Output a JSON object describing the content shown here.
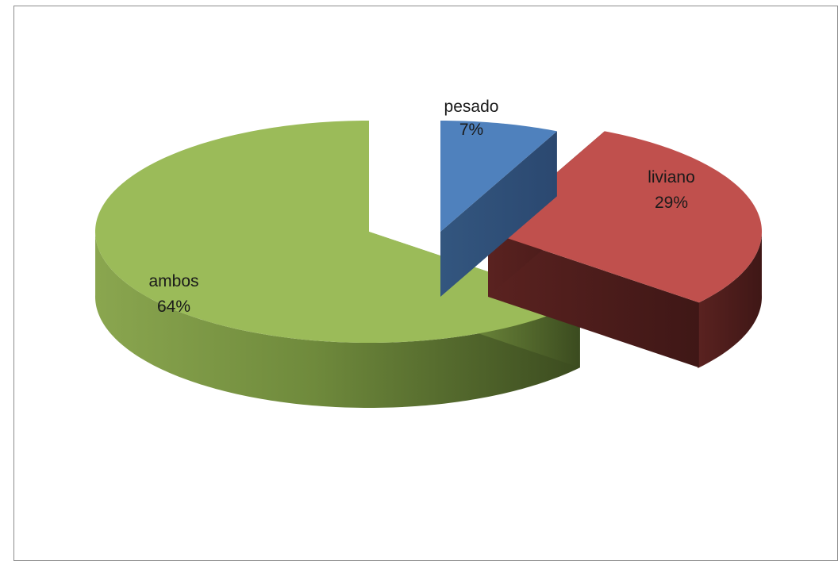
{
  "chart_data": {
    "type": "pie",
    "style": "3d-exploded",
    "categories": [
      "pesado",
      "liviano",
      "ambos"
    ],
    "values": [
      7,
      29,
      64
    ],
    "labels": [
      {
        "name": "pesado",
        "percent": "7%"
      },
      {
        "name": "liviano",
        "percent": "29%"
      },
      {
        "name": "ambos",
        "percent": "64%"
      }
    ],
    "colors": [
      "#4f81bd",
      "#c0504d",
      "#9bbb59"
    ],
    "title": "",
    "legend": "none"
  }
}
